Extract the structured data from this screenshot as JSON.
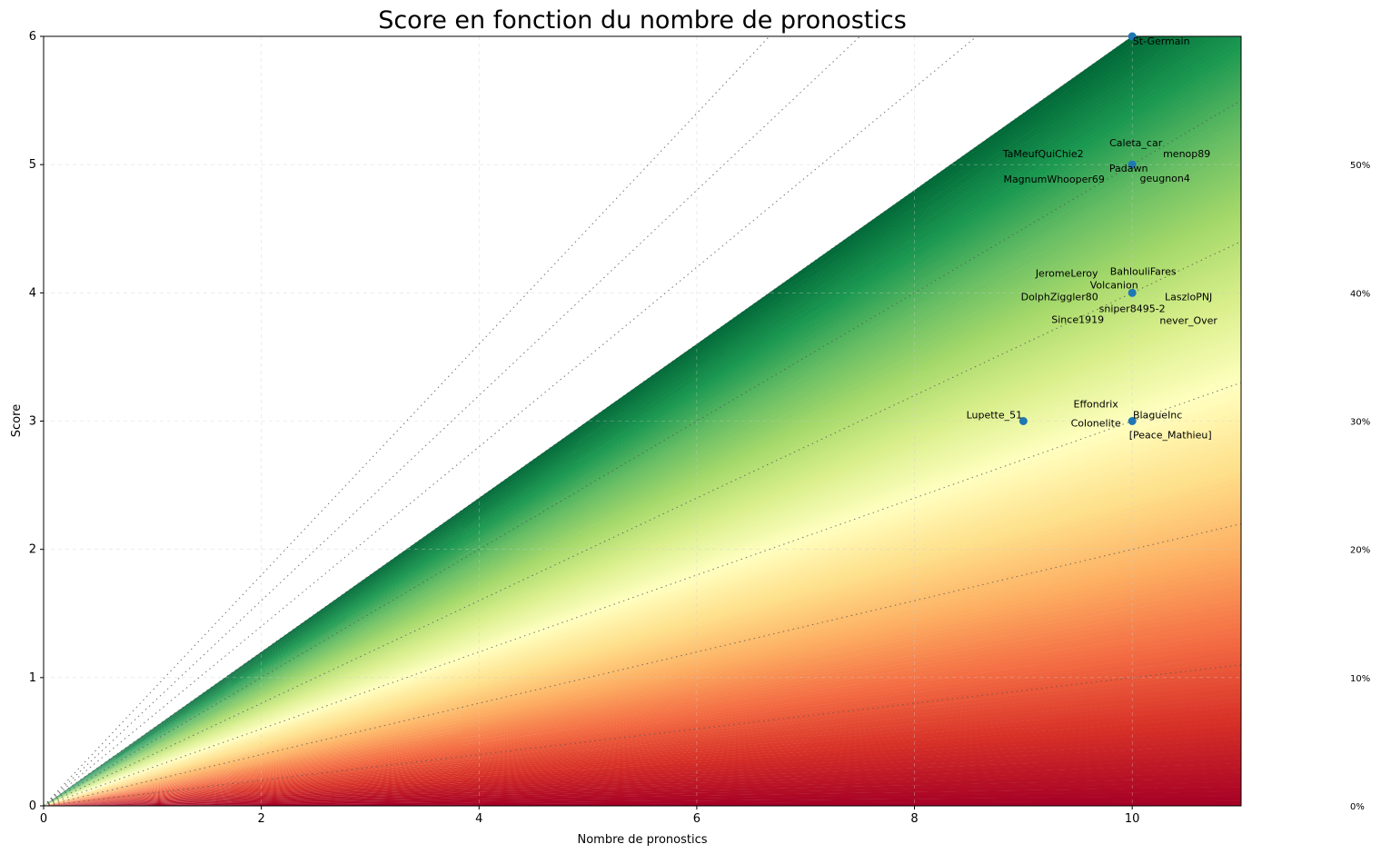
{
  "chart_data": {
    "type": "scatter",
    "title": "Score en fonction du nombre de pronostics",
    "xlabel": "Nombre de pronostics",
    "ylabel": "Score",
    "xlim": [
      0,
      11
    ],
    "ylim": [
      0,
      6
    ],
    "xticks": [
      "0",
      "2",
      "4",
      "6",
      "8",
      "10"
    ],
    "yticks": [
      "0",
      "1",
      "2",
      "3",
      "4",
      "5",
      "6"
    ],
    "grid": true,
    "background": "green (high score ratio) to red (low score ratio) gradient",
    "reference_lines": [
      "0%",
      "10%",
      "20%",
      "30%",
      "40%",
      "50%"
    ],
    "point_color": "#1f77b4",
    "points": [
      {
        "x": 10,
        "y": 6,
        "labels": [
          "St-Germain"
        ]
      },
      {
        "x": 10,
        "y": 5,
        "labels": [
          "Caleta_car",
          "TaMeufQuiChie2",
          "menop89",
          "Padawn",
          "MagnumWhooper69",
          "geugnon4"
        ]
      },
      {
        "x": 10,
        "y": 4,
        "labels": [
          "BahlouliFares",
          "JeromeLeroy",
          "Volcanion",
          "DolphZiggler80",
          "LaszloPNJ",
          "sniper8495-2",
          "Since1919",
          "never_Over"
        ]
      },
      {
        "x": 10,
        "y": 3,
        "labels": [
          "Effondrix",
          "BlagueInc",
          "Colonelite",
          "[Peace_Mathieu]"
        ]
      },
      {
        "x": 9,
        "y": 3,
        "labels": [
          "Lupette_51"
        ]
      }
    ]
  }
}
